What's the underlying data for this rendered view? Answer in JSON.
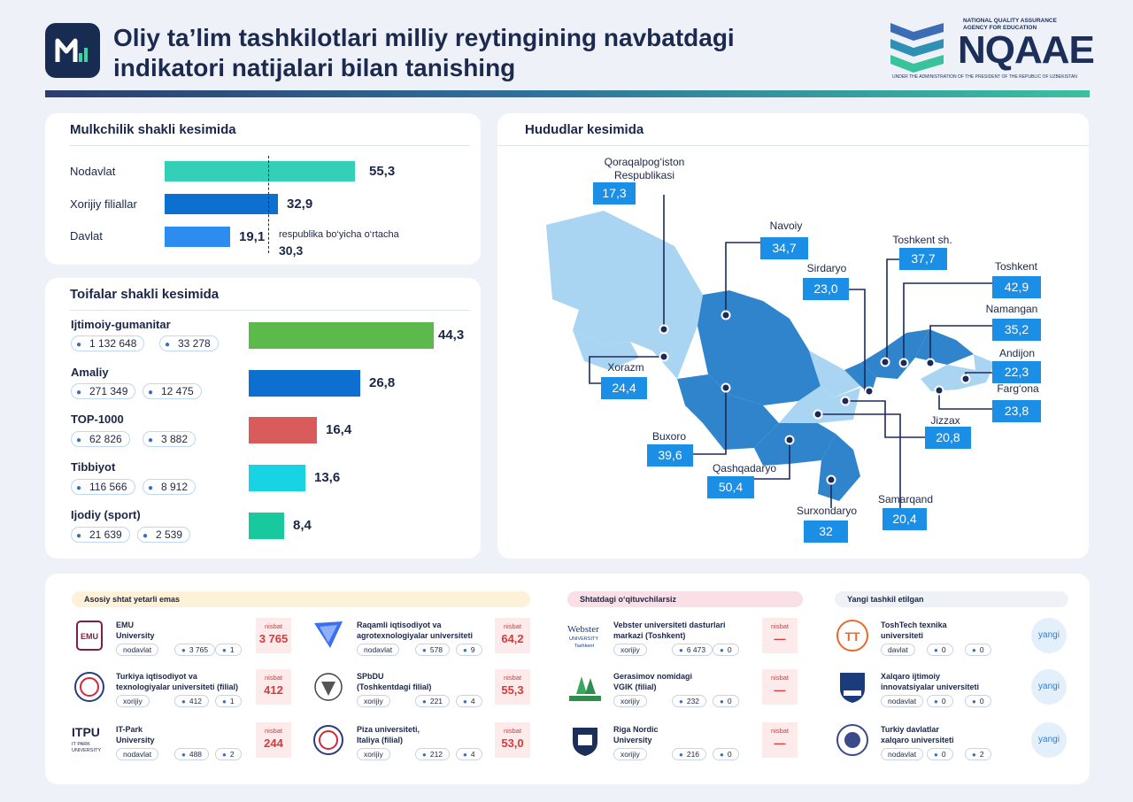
{
  "header": {
    "title": "Oliy ta’lim tashkilotlari milliy reytingining navbatdagi indikatori natijalari bilan tanishing",
    "brand_top_line1": "NATIONAL QUALITY ASSURANCE",
    "brand_top_line2": "AGENCY FOR EDUCATION",
    "brand_name": "NQAAE",
    "brand_sub": "UNDER THE ADMINISTRATION OF THE PRESIDENT OF THE REPUBLIC OF UZBEKISTAN"
  },
  "colors": {
    "teal": "#33cfb7",
    "blue_dark": "#0d6fd0",
    "blue": "#2c8cf0",
    "green": "#5cb94b",
    "red": "#d95b5b",
    "cyan": "#18d3e3",
    "mint": "#18c99d",
    "map_light": "#a9d5f2",
    "map_dark": "#2f84cb",
    "label_box": "#1b8fe6"
  },
  "chart_data": [
    {
      "type": "bar",
      "title": "Mulkchilik shakli kesimida",
      "categories": [
        "Nodavlat",
        "Xorijiy filiallar",
        "Davlat"
      ],
      "values": [
        55.3,
        32.9,
        19.1
      ],
      "value_labels": [
        "55,3",
        "32,9",
        "19,1"
      ],
      "reference": {
        "label": "respublika bo‘yicha o‘rtacha",
        "value": 30.3,
        "value_label": "30,3"
      }
    },
    {
      "type": "bar",
      "title": "Toifalar shakli kesimida",
      "categories": [
        "Ijtimoiy-gumanitar",
        "Amaliy",
        "TOP-1000",
        "Tibbiyot",
        "Ijodiy (sport)"
      ],
      "values": [
        44.3,
        26.8,
        16.4,
        13.6,
        8.4
      ],
      "value_labels": [
        "44,3",
        "26,8",
        "16,4",
        "13,6",
        "8,4"
      ],
      "students": [
        "1 132 648",
        "271 349",
        "62 826",
        "116 566",
        "21 639"
      ],
      "teachers": [
        "33 278",
        "12 475",
        "3 882",
        "8 912",
        "2 539"
      ]
    },
    {
      "type": "map",
      "title": "Hududlar kesimida",
      "regions": [
        {
          "name": "Qoraqalpog‘iston Respublikasi",
          "value": 17.3,
          "label": "17,3"
        },
        {
          "name": "Navoiy",
          "value": 34.7,
          "label": "34,7"
        },
        {
          "name": "Toshkent sh.",
          "value": 37.7,
          "label": "37,7"
        },
        {
          "name": "Sirdaryo",
          "value": 23.0,
          "label": "23,0"
        },
        {
          "name": "Toshkent",
          "value": 42.9,
          "label": "42,9"
        },
        {
          "name": "Namangan",
          "value": 35.2,
          "label": "35,2"
        },
        {
          "name": "Xorazm",
          "value": 24.4,
          "label": "24,4"
        },
        {
          "name": "Andijon",
          "value": 22.3,
          "label": "22,3"
        },
        {
          "name": "Farg‘ona",
          "value": 23.8,
          "label": "23,8"
        },
        {
          "name": "Jizzax",
          "value": 20.8,
          "label": "20,8"
        },
        {
          "name": "Buxoro",
          "value": 39.6,
          "label": "39,6"
        },
        {
          "name": "Qashqadaryo",
          "value": 50.4,
          "label": "50,4"
        },
        {
          "name": "Samarqand",
          "value": 20.4,
          "label": "20,4"
        },
        {
          "name": "Surxondaryo",
          "value": 32,
          "label": "32"
        }
      ]
    }
  ],
  "sections": {
    "shtat": "Asosiy shtat yetarli emas",
    "shtatdagi": "Shtatdagi o‘qituvchilarsiz",
    "yangi": "Yangi tashkil etilgan"
  },
  "nisbat_label": "nisbat",
  "yangi_label": "yangi",
  "universities": {
    "emu": {
      "name1": "EMU",
      "name2": "University",
      "type": "nodavlat",
      "students": "3 765",
      "teachers": "1",
      "ratio": "3 765",
      "logo_text": "EMU"
    },
    "turkiya_iqt": {
      "name1": "Turkiya iqtisodiyot va",
      "name2": "texnologiyalar universiteti (filial)",
      "type": "xorijiy",
      "students": "412",
      "teachers": "1",
      "ratio": "412"
    },
    "itpark": {
      "name1": "IT-Park",
      "name2": "University",
      "type": "nodavlat",
      "students": "488",
      "teachers": "2",
      "ratio": "244",
      "logo_text": "ITPU",
      "logo_sub1": "IT PARK",
      "logo_sub2": "UNIVERSITY"
    },
    "raqamli": {
      "name1": "Raqamli iqtisodiyot va",
      "name2": "agrotexnologiyalar universiteti",
      "type": "nodavlat",
      "students": "578",
      "teachers": "9",
      "ratio": "64,2"
    },
    "spbdu": {
      "name1": "SPbDU",
      "name2": "(Toshkentdagi filial)",
      "type": "xorijiy",
      "students": "221",
      "teachers": "4",
      "ratio": "55,3"
    },
    "piza": {
      "name1": "Piza universiteti,",
      "name2": "Italiya (filial)",
      "type": "xorijiy",
      "students": "212",
      "teachers": "4",
      "ratio": "53,0"
    },
    "webster": {
      "name1": "Vebster universiteti dasturlari",
      "name2": "markazi (Toshkent)",
      "type": "xorijiy",
      "students": "6 473",
      "teachers": "0",
      "ratio": "—",
      "logo_text": "Webster",
      "logo_sub": "UNIVERSITY",
      "logo_sub2": "Tashkent"
    },
    "gerasimov": {
      "name1": "Gerasimov nomidagi",
      "name2": "VGIK (filial)",
      "type": "xorijiy",
      "students": "232",
      "teachers": "0",
      "ratio": "—"
    },
    "riga": {
      "name1": "Riga Nordic",
      "name2": "University",
      "type": "xorijiy",
      "students": "216",
      "teachers": "0",
      "ratio": "—"
    },
    "toshtech": {
      "name1": "ToshTech texnika",
      "name2": "universiteti",
      "type": "davlat",
      "students": "0",
      "teachers": "0"
    },
    "xalqaro": {
      "name1": "Xalqaro ijtimoiy",
      "name2": "innovatsiyalar universiteti",
      "type": "nodavlat",
      "students": "0",
      "teachers": "0"
    },
    "turkiy": {
      "name1": "Turkiy davlatlar",
      "name2": "xalqaro universiteti",
      "type": "nodavlat",
      "students": "0",
      "teachers": "2"
    }
  }
}
